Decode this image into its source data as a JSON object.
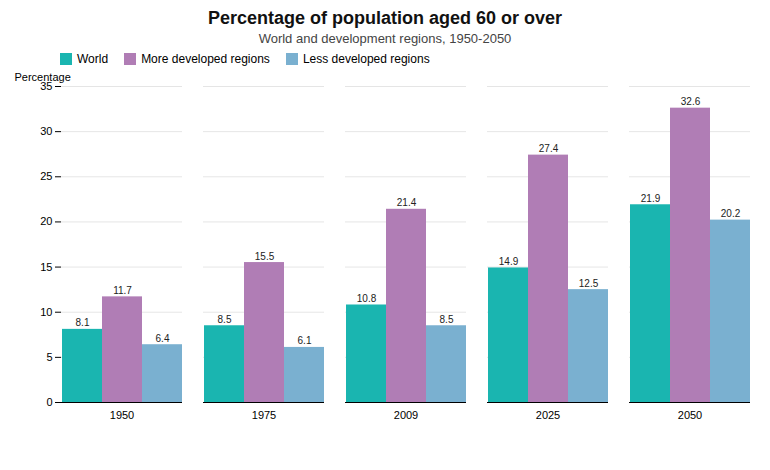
{
  "chart_data": {
    "type": "bar",
    "title": "Percentage of population aged 60 or over",
    "subtitle": "World and development regions, 1950-2050",
    "ylabel": "Percentage",
    "categories": [
      "1950",
      "1975",
      "2009",
      "2025",
      "2050"
    ],
    "series": [
      {
        "name": "World",
        "color": "#1ab5b0",
        "values": [
          8.1,
          8.5,
          10.8,
          14.9,
          21.9
        ]
      },
      {
        "name": "More developed regions",
        "color": "#b07db5",
        "values": [
          11.7,
          15.5,
          21.4,
          27.4,
          32.6
        ]
      },
      {
        "name": "Less developed regions",
        "color": "#7ab0d0",
        "values": [
          6.4,
          6.1,
          8.5,
          12.5,
          20.2
        ]
      }
    ],
    "ylim": [
      0,
      35
    ],
    "yticks": [
      0,
      5,
      10,
      15,
      20,
      25,
      30,
      35
    ],
    "grid": true,
    "legend": "upper-left",
    "data_labels": true
  }
}
